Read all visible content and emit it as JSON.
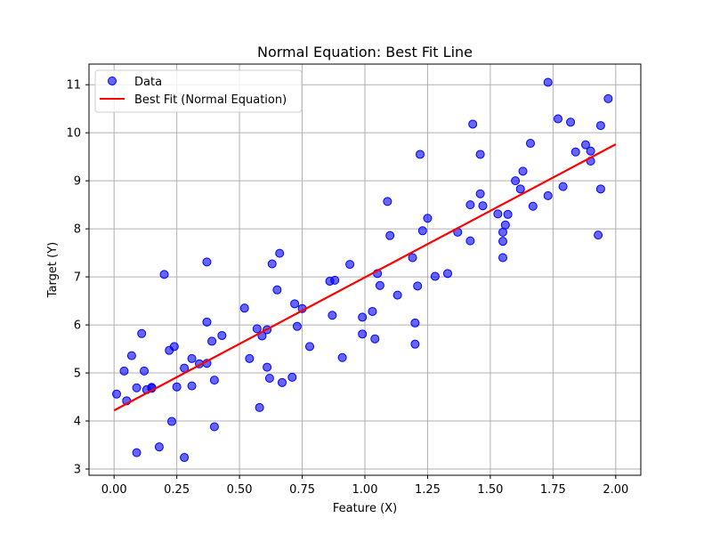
{
  "chart_data": {
    "type": "scatter",
    "title": "Normal Equation: Best Fit Line",
    "xlabel": "Feature (X)",
    "ylabel": "Target (Y)",
    "xlim": [
      -0.1,
      2.1
    ],
    "ylim": [
      2.87,
      11.43
    ],
    "x_ticks": [
      0.0,
      0.25,
      0.5,
      0.75,
      1.0,
      1.25,
      1.5,
      1.75,
      2.0
    ],
    "x_tick_labels": [
      "0.00",
      "0.25",
      "0.50",
      "0.75",
      "1.00",
      "1.25",
      "1.50",
      "1.75",
      "2.00"
    ],
    "y_ticks": [
      3,
      4,
      5,
      6,
      7,
      8,
      9,
      10,
      11
    ],
    "y_tick_labels": [
      "3",
      "4",
      "5",
      "6",
      "7",
      "8",
      "9",
      "10",
      "11"
    ],
    "grid": true,
    "legend_position": "top-left",
    "series": [
      {
        "name": "Data",
        "kind": "scatter",
        "color": "#0000ff",
        "points": [
          [
            0.01,
            4.56
          ],
          [
            0.04,
            5.04
          ],
          [
            0.05,
            4.42
          ],
          [
            0.07,
            5.36
          ],
          [
            0.09,
            4.69
          ],
          [
            0.09,
            3.34
          ],
          [
            0.11,
            5.82
          ],
          [
            0.12,
            5.04
          ],
          [
            0.13,
            4.65
          ],
          [
            0.15,
            4.7
          ],
          [
            0.15,
            4.68
          ],
          [
            0.18,
            3.46
          ],
          [
            0.2,
            7.05
          ],
          [
            0.22,
            5.47
          ],
          [
            0.23,
            3.99
          ],
          [
            0.24,
            5.55
          ],
          [
            0.25,
            4.71
          ],
          [
            0.28,
            3.24
          ],
          [
            0.28,
            5.1
          ],
          [
            0.31,
            5.3
          ],
          [
            0.31,
            4.73
          ],
          [
            0.34,
            5.19
          ],
          [
            0.37,
            5.2
          ],
          [
            0.37,
            6.06
          ],
          [
            0.37,
            7.31
          ],
          [
            0.39,
            5.66
          ],
          [
            0.4,
            3.88
          ],
          [
            0.4,
            4.85
          ],
          [
            0.43,
            5.78
          ],
          [
            0.52,
            6.35
          ],
          [
            0.54,
            5.3
          ],
          [
            0.57,
            5.92
          ],
          [
            0.58,
            4.28
          ],
          [
            0.59,
            5.77
          ],
          [
            0.61,
            5.12
          ],
          [
            0.61,
            5.9
          ],
          [
            0.62,
            4.89
          ],
          [
            0.63,
            7.27
          ],
          [
            0.65,
            6.73
          ],
          [
            0.66,
            7.49
          ],
          [
            0.67,
            4.8
          ],
          [
            0.71,
            4.91
          ],
          [
            0.72,
            6.44
          ],
          [
            0.73,
            5.97
          ],
          [
            0.75,
            6.34
          ],
          [
            0.78,
            5.55
          ],
          [
            0.86,
            6.91
          ],
          [
            0.87,
            6.2
          ],
          [
            0.88,
            6.93
          ],
          [
            0.91,
            5.32
          ],
          [
            0.94,
            7.26
          ],
          [
            0.99,
            6.16
          ],
          [
            0.99,
            5.81
          ],
          [
            1.03,
            6.28
          ],
          [
            1.04,
            5.71
          ],
          [
            1.05,
            7.07
          ],
          [
            1.06,
            6.82
          ],
          [
            1.09,
            8.57
          ],
          [
            1.1,
            7.86
          ],
          [
            1.13,
            6.62
          ],
          [
            1.19,
            7.4
          ],
          [
            1.2,
            6.04
          ],
          [
            1.21,
            6.81
          ],
          [
            1.2,
            5.6
          ],
          [
            1.22,
            9.55
          ],
          [
            1.23,
            7.96
          ],
          [
            1.25,
            8.22
          ],
          [
            1.28,
            7.01
          ],
          [
            1.33,
            7.07
          ],
          [
            1.37,
            7.93
          ],
          [
            1.42,
            8.5
          ],
          [
            1.42,
            7.75
          ],
          [
            1.43,
            10.18
          ],
          [
            1.46,
            8.73
          ],
          [
            1.46,
            9.55
          ],
          [
            1.47,
            8.48
          ],
          [
            1.53,
            8.31
          ],
          [
            1.55,
            7.93
          ],
          [
            1.55,
            7.74
          ],
          [
            1.55,
            7.4
          ],
          [
            1.56,
            8.08
          ],
          [
            1.57,
            8.3
          ],
          [
            1.6,
            9.0
          ],
          [
            1.62,
            8.83
          ],
          [
            1.63,
            9.2
          ],
          [
            1.66,
            9.78
          ],
          [
            1.67,
            8.47
          ],
          [
            1.73,
            11.05
          ],
          [
            1.73,
            8.69
          ],
          [
            1.77,
            10.29
          ],
          [
            1.79,
            8.88
          ],
          [
            1.82,
            10.22
          ],
          [
            1.84,
            9.6
          ],
          [
            1.88,
            9.75
          ],
          [
            1.9,
            9.62
          ],
          [
            1.9,
            9.41
          ],
          [
            1.93,
            7.87
          ],
          [
            1.94,
            8.83
          ],
          [
            1.94,
            10.15
          ],
          [
            1.97,
            10.71
          ]
        ]
      },
      {
        "name": "Best Fit (Normal Equation)",
        "kind": "line",
        "color": "#ff0000",
        "points": [
          [
            0.0,
            4.22
          ],
          [
            2.0,
            9.76
          ]
        ]
      }
    ]
  }
}
